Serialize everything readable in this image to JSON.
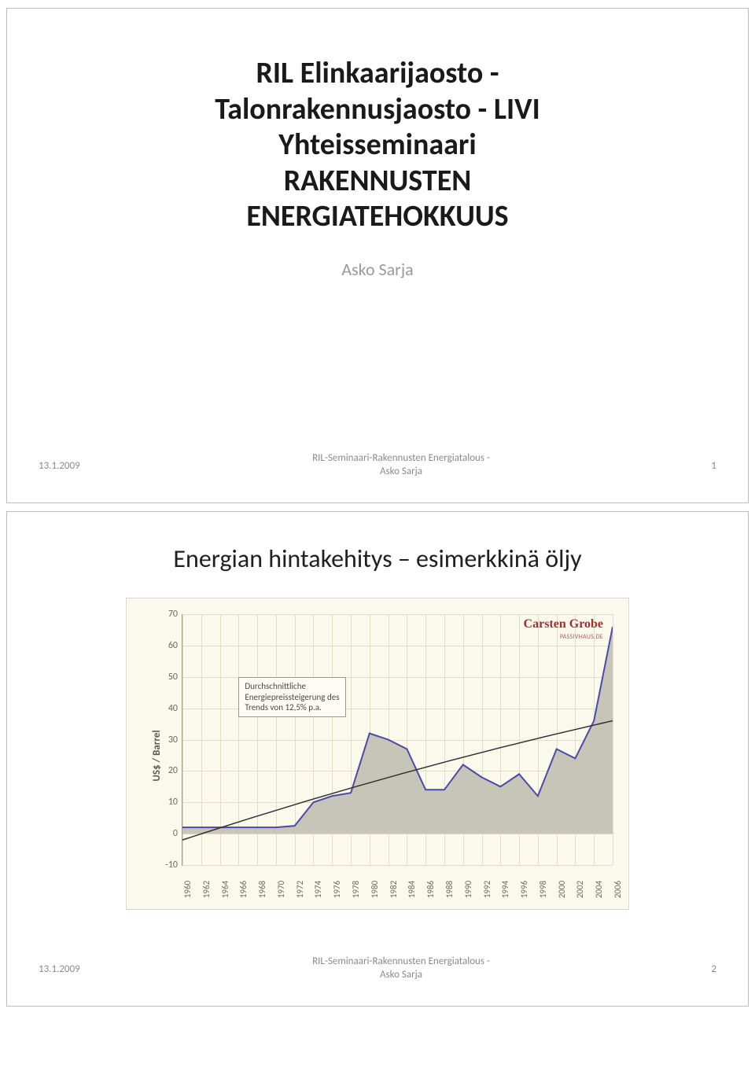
{
  "slide1": {
    "title_line1": "RIL Elinkaarijaosto -",
    "title_line2": "Talonrakennusjaosto - LIVI",
    "title_line3": "Yhteisseminaari",
    "title_line4": "RAKENNUSTEN",
    "title_line5": "ENERGIATEHOKKUUS",
    "author": "Asko Sarja",
    "footer_date": "13.1.2009",
    "footer_center_line1": "RIL-Seminaari-Rakennusten Energiatalous -",
    "footer_center_line2": "Asko Sarja",
    "page_num": "1"
  },
  "slide2": {
    "title": "Energian hintakehitys – esimerkkinä öljy",
    "footer_date": "13.1.2009",
    "footer_center_line1": "RIL-Seminaari-Rakennusten Energiatalous -",
    "footer_center_line2": "Asko Sarja",
    "page_num": "2",
    "chart": {
      "type": "area-line",
      "ylabel": "US$ / Barrel",
      "ylim_min": -10,
      "ylim_max": 70,
      "ytick_values": [
        -10,
        0,
        10,
        20,
        30,
        40,
        50,
        60,
        70
      ],
      "xlim_min": 1960,
      "xlim_max": 2006,
      "xtick_values": [
        1960,
        1962,
        1964,
        1966,
        1968,
        1970,
        1972,
        1974,
        1976,
        1978,
        1980,
        1982,
        1984,
        1986,
        1988,
        1990,
        1992,
        1994,
        1996,
        1998,
        2000,
        2002,
        2004,
        2006
      ],
      "series_years": [
        1960,
        1962,
        1964,
        1966,
        1968,
        1970,
        1972,
        1974,
        1976,
        1978,
        1980,
        1982,
        1984,
        1986,
        1988,
        1990,
        1992,
        1994,
        1996,
        1998,
        2000,
        2002,
        2004,
        2006
      ],
      "series_values": [
        2,
        2,
        2,
        2,
        2,
        2,
        2.5,
        10,
        12,
        13,
        32,
        30,
        27,
        14,
        14,
        22,
        18,
        15,
        19,
        12,
        27,
        24,
        36,
        66
      ],
      "series_fill_color": "#c7c5b8",
      "series_line_color": "#4a4aa8",
      "series_line_width": 2,
      "trend_line_color": "#303030",
      "trend_line_width": 1.5,
      "trend_start_year": 1960,
      "trend_start_value": -2,
      "trend_end_year": 2006,
      "trend_end_value": 36,
      "grid_color": "#e0ddc8",
      "background_color": "#fbf9ec",
      "axis_color": "#9a9a8a",
      "tick_fontsize": 12,
      "annotation_line1": "Durchschnittliche",
      "annotation_line2": "Energiepreissteigerung des",
      "annotation_line3": "Trends von 12,5% p.a.",
      "annotation_x_year": 1966,
      "annotation_y_value": 50,
      "attribution": "Carsten Grobe",
      "sub_attribution": "PASSIVHAUS.DE"
    }
  }
}
